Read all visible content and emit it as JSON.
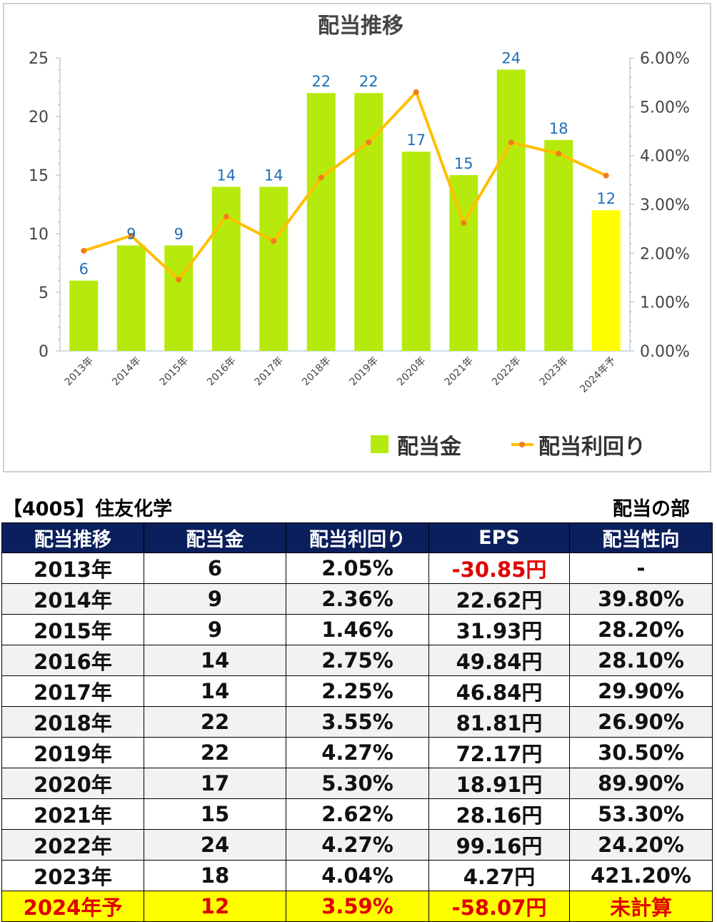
{
  "chart_data": {
    "type": "bar",
    "title": "配当推移",
    "categories": [
      "2013年",
      "2014年",
      "2015年",
      "2016年",
      "2017年",
      "2018年",
      "2019年",
      "2020年",
      "2021年",
      "2022年",
      "2023年",
      "2024年予"
    ],
    "series": [
      {
        "name": "配当金",
        "type": "bar",
        "values": [
          6,
          9,
          9,
          14,
          14,
          22,
          22,
          17,
          15,
          24,
          18,
          12
        ],
        "color": "#b5ea0c",
        "highlight_last_color": "#ffff00"
      },
      {
        "name": "配当利回り",
        "type": "line",
        "axis": "right",
        "values": [
          2.05,
          2.36,
          1.46,
          2.75,
          2.25,
          3.55,
          4.27,
          5.3,
          2.62,
          4.27,
          4.04,
          3.59
        ],
        "color": "#ffbf00"
      }
    ],
    "data_labels": [
      "6",
      "9",
      "9",
      "14",
      "14",
      "22",
      "22",
      "17",
      "15",
      "24",
      "18",
      "12"
    ],
    "y_left": {
      "ylim": [
        0,
        25
      ],
      "ticks": [
        "0",
        "5",
        "10",
        "15",
        "20",
        "25"
      ]
    },
    "y_right": {
      "ylim": [
        0,
        6
      ],
      "ticks": [
        "0.00%",
        "1.00%",
        "2.00%",
        "3.00%",
        "4.00%",
        "5.00%",
        "6.00%"
      ]
    },
    "legend": "bottom-right",
    "grid": false
  },
  "info": {
    "company": "【4005】住友化学",
    "section": "配当の部"
  },
  "table": {
    "headers": [
      "配当推移",
      "配当金",
      "配当利回り",
      "EPS",
      "配当性向"
    ],
    "rows": [
      {
        "year": "2013年",
        "div": "6",
        "yield": "2.05%",
        "eps": "-30.85円",
        "payout": "-",
        "eps_negative": true
      },
      {
        "year": "2014年",
        "div": "9",
        "yield": "2.36%",
        "eps": "22.62円",
        "payout": "39.80%"
      },
      {
        "year": "2015年",
        "div": "9",
        "yield": "1.46%",
        "eps": "31.93円",
        "payout": "28.20%"
      },
      {
        "year": "2016年",
        "div": "14",
        "yield": "2.75%",
        "eps": "49.84円",
        "payout": "28.10%"
      },
      {
        "year": "2017年",
        "div": "14",
        "yield": "2.25%",
        "eps": "46.84円",
        "payout": "29.90%"
      },
      {
        "year": "2018年",
        "div": "22",
        "yield": "3.55%",
        "eps": "81.81円",
        "payout": "26.90%"
      },
      {
        "year": "2019年",
        "div": "22",
        "yield": "4.27%",
        "eps": "72.17円",
        "payout": "30.50%"
      },
      {
        "year": "2020年",
        "div": "17",
        "yield": "5.30%",
        "eps": "18.91円",
        "payout": "89.90%"
      },
      {
        "year": "2021年",
        "div": "15",
        "yield": "2.62%",
        "eps": "28.16円",
        "payout": "53.30%"
      },
      {
        "year": "2022年",
        "div": "24",
        "yield": "4.27%",
        "eps": "99.16円",
        "payout": "24.20%"
      },
      {
        "year": "2023年",
        "div": "18",
        "yield": "4.04%",
        "eps": "4.27円",
        "payout": "421.20%"
      },
      {
        "year": "2024年予",
        "div": "12",
        "yield": "3.59%",
        "eps": "-58.07円",
        "payout": "未計算",
        "forecast": true
      }
    ]
  }
}
